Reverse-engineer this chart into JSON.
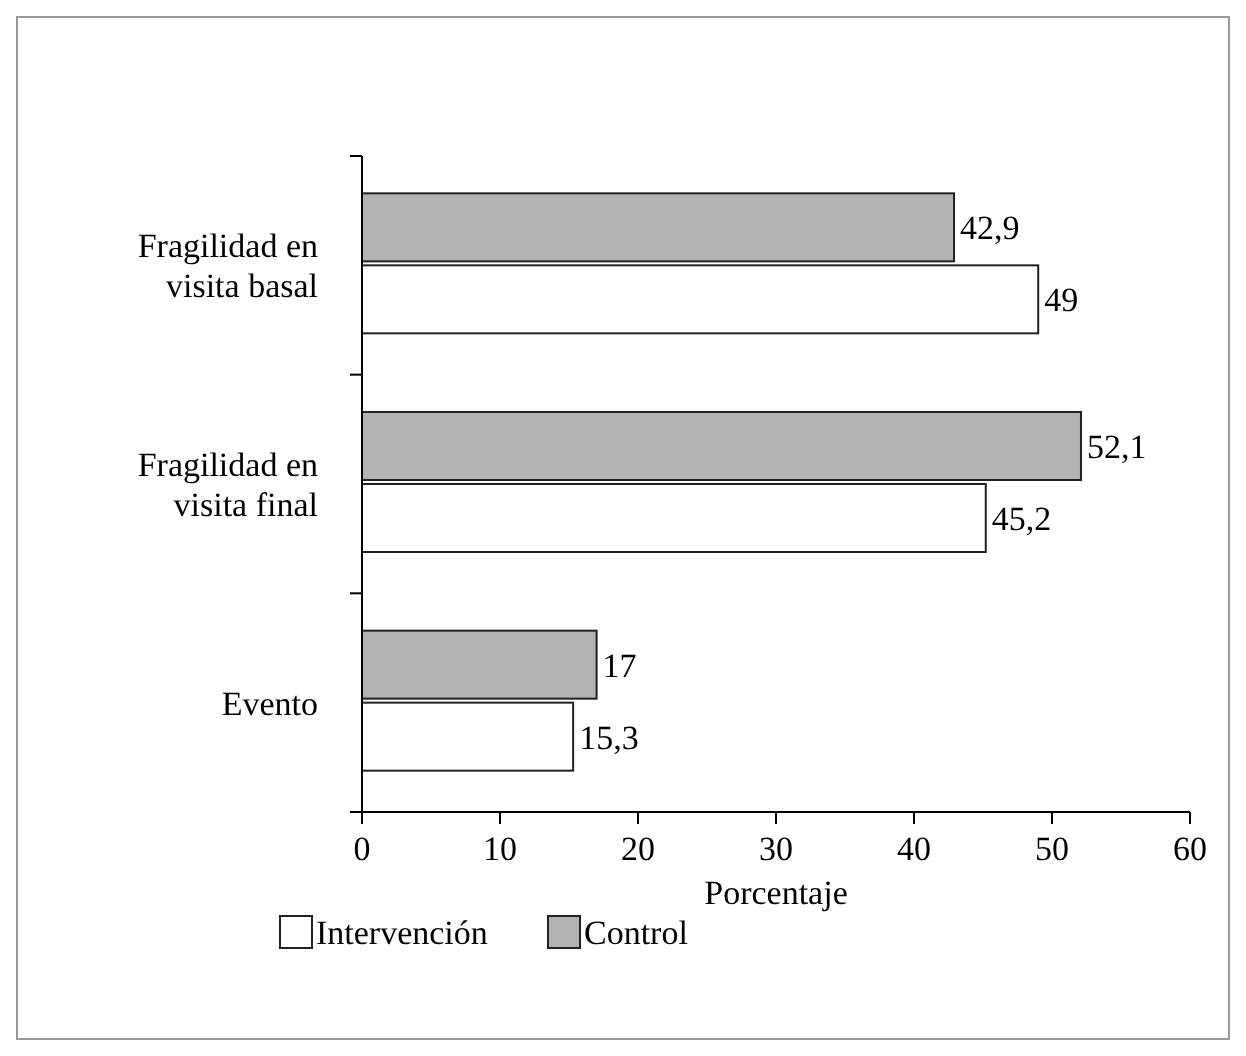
{
  "chart_data": {
    "type": "bar",
    "orientation": "horizontal",
    "categories": [
      "Fragilidad en\nvisita basal",
      "Fragilidad en\nvisita final",
      "Evento"
    ],
    "series": [
      {
        "name": "Intervención",
        "color": "#ffffff",
        "values": [
          49,
          45.2,
          15.3
        ],
        "value_labels": [
          "49",
          "45,2",
          "15,3"
        ]
      },
      {
        "name": "Control",
        "color": "#b3b3b3",
        "values": [
          42.9,
          52.1,
          17
        ],
        "value_labels": [
          "42,9",
          "52,1",
          "17"
        ]
      }
    ],
    "xlabel": "Porcentaje",
    "xlim": [
      0,
      60
    ],
    "xticks": [
      0,
      10,
      20,
      30,
      40,
      50,
      60
    ],
    "grid": false,
    "legend": "bottom"
  }
}
